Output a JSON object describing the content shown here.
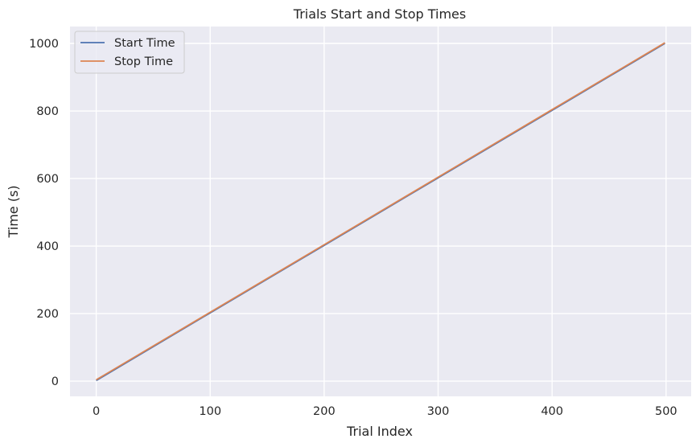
{
  "chart_data": {
    "type": "line",
    "title": "Trials Start and Stop Times",
    "xlabel": "Trial Index",
    "ylabel": "Time (s)",
    "xlim": [
      -23,
      522
    ],
    "ylim": [
      -45,
      1050
    ],
    "x_ticks": [
      0,
      100,
      200,
      300,
      400,
      500
    ],
    "y_ticks": [
      0,
      200,
      400,
      600,
      800,
      1000
    ],
    "grid": true,
    "legend_position": "top-left",
    "background_color": "#eaeaf2",
    "grid_color": "#ffffff",
    "series": [
      {
        "name": "Start Time",
        "color": "#4c72b0",
        "x": [
          0,
          100,
          200,
          300,
          400,
          499
        ],
        "values": [
          2,
          202,
          402,
          602,
          802,
          1000
        ]
      },
      {
        "name": "Stop Time",
        "color": "#dd8452",
        "x": [
          0,
          100,
          200,
          300,
          400,
          499
        ],
        "values": [
          4,
          204,
          404,
          604,
          804,
          1002
        ]
      }
    ]
  }
}
